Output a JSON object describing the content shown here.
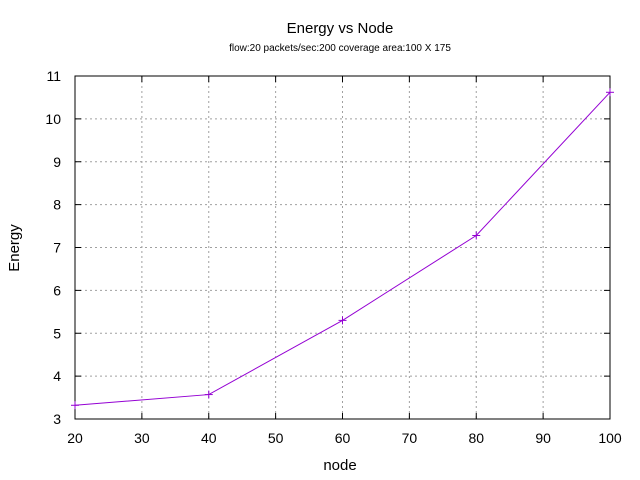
{
  "chart_data": {
    "type": "line",
    "title": "Energy vs Node",
    "subtitle": "flow:20  packets/sec:200  coverage area:100 X 175",
    "xlabel": "node",
    "ylabel": "Energy",
    "xlim": [
      20,
      100
    ],
    "ylim": [
      3,
      11
    ],
    "xticks": [
      20,
      30,
      40,
      50,
      60,
      70,
      80,
      90,
      100
    ],
    "yticks": [
      3,
      4,
      5,
      6,
      7,
      8,
      9,
      10,
      11
    ],
    "grid": true,
    "series": [
      {
        "color": "#9400d3",
        "marker": "plus",
        "x": [
          20,
          40,
          60,
          80,
          100
        ],
        "y": [
          3.32,
          3.57,
          5.3,
          7.28,
          10.62
        ]
      }
    ]
  }
}
